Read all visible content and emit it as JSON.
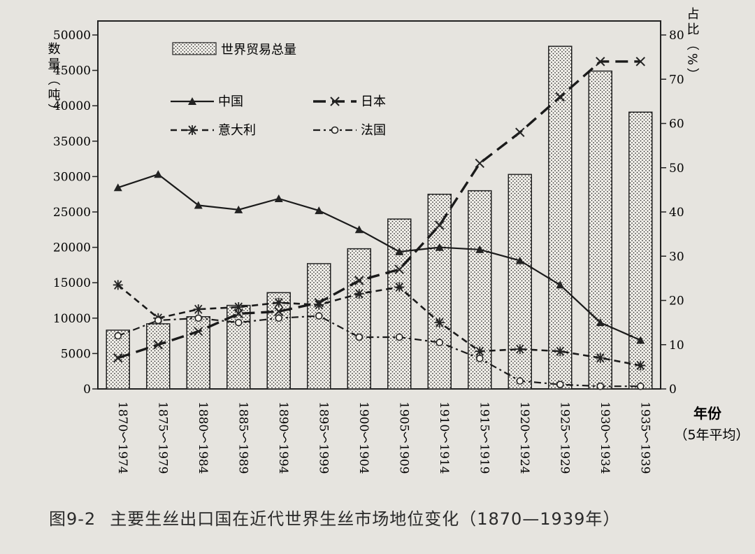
{
  "caption": {
    "figure_number": "图9-2",
    "text": "主要生丝出口国在近代世界生丝市场地位变化（1870—1939年）"
  },
  "chart_data": {
    "type": "bar+line",
    "y_left_label": "数量（吨）",
    "y_right_label": "占比（%）",
    "x_label": "年份",
    "x_label_sub": "（5年平均）",
    "ylim_left": [
      0,
      50000
    ],
    "ylim_right": [
      0,
      80
    ],
    "ticks_left": [
      "0",
      "5000",
      "10000",
      "15000",
      "20000",
      "25000",
      "30000",
      "35000",
      "40000",
      "45000",
      "50000"
    ],
    "ticks_right": [
      "0",
      "10",
      "20",
      "30",
      "40",
      "50",
      "60",
      "70",
      "80"
    ],
    "categories": [
      "1870～1974",
      "1875～1979",
      "1880～1984",
      "1885～1989",
      "1890～1994",
      "1895～1999",
      "1900～1904",
      "1905～1909",
      "1910～1914",
      "1915～1919",
      "1920～1924",
      "1925～1929",
      "1930～1934",
      "1935～1939"
    ],
    "bars": {
      "name": "世界贸易总量",
      "values": [
        8300,
        9200,
        10200,
        11800,
        13600,
        17700,
        19800,
        24000,
        27500,
        28000,
        30300,
        48400,
        44900,
        39100
      ]
    },
    "series": [
      {
        "name": "中国",
        "style": "solid-triangle",
        "values": [
          45.5,
          48.5,
          41.5,
          40.5,
          43,
          40.3,
          36,
          31,
          32,
          31.5,
          29,
          23.5,
          15,
          11
        ]
      },
      {
        "name": "日本",
        "style": "long-dash-x",
        "values": [
          7,
          10,
          13,
          17,
          17.5,
          19.5,
          24.5,
          27,
          37,
          51,
          58,
          66,
          74,
          74
        ]
      },
      {
        "name": "意大利",
        "style": "dash-asterisk",
        "values": [
          23.5,
          16,
          18,
          18.5,
          19.5,
          19,
          21.5,
          23,
          15,
          8.5,
          9,
          8.5,
          7,
          5.3
        ]
      },
      {
        "name": "法国",
        "style": "dash-dot-circle",
        "values": [
          12,
          15.5,
          16,
          15,
          16,
          16.5,
          11.7,
          11.7,
          10.5,
          6.9,
          1.8,
          1,
          0.6,
          0.6
        ]
      }
    ]
  }
}
